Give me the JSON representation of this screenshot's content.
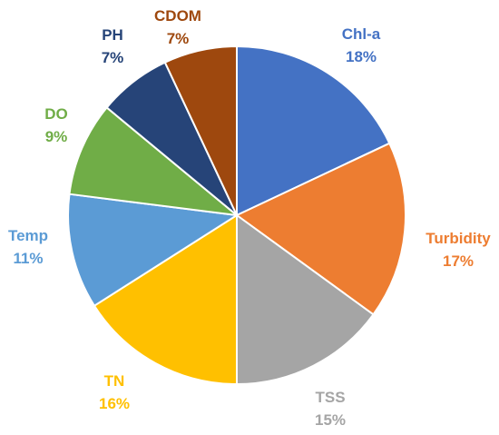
{
  "chart_data": {
    "type": "pie",
    "title": "",
    "legend": "none",
    "start_angle_deg": 0,
    "direction": "clockwise",
    "slices": [
      {
        "name": "Chl-a",
        "value": 18,
        "label": "18%",
        "color": "#4472C4",
        "label_color": "#4472C4"
      },
      {
        "name": "Turbidity",
        "value": 17,
        "label": "17%",
        "color": "#ED7D31",
        "label_color": "#ED7D31"
      },
      {
        "name": "TSS",
        "value": 15,
        "label": "15%",
        "color": "#A5A5A5",
        "label_color": "#A5A5A5"
      },
      {
        "name": "TN",
        "value": 16,
        "label": "16%",
        "color": "#FFC000",
        "label_color": "#FFC000"
      },
      {
        "name": "Temp",
        "value": 11,
        "label": "11%",
        "color": "#5B9BD5",
        "label_color": "#5B9BD5"
      },
      {
        "name": "DO",
        "value": 9,
        "label": "9%",
        "color": "#70AD47",
        "label_color": "#70AD47"
      },
      {
        "name": "PH",
        "value": 7,
        "label": "7%",
        "color": "#264478",
        "label_color": "#264478"
      },
      {
        "name": "CDOM",
        "value": 7,
        "label": "7%",
        "color": "#9E480E",
        "label_color": "#9E480E"
      }
    ]
  }
}
